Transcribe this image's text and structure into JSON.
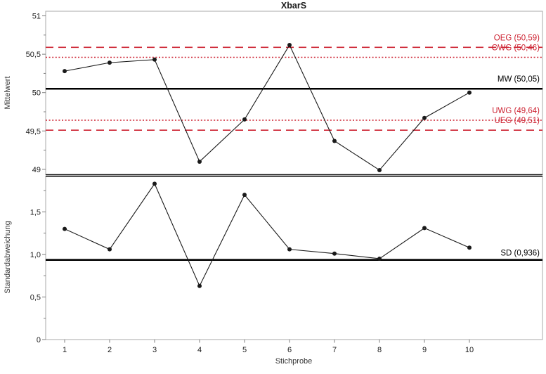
{
  "title": "XbarS",
  "colors": {
    "limit_red": "#cd2332",
    "center_black": "#000000",
    "series_black": "#1a1a1a",
    "frame_gray": "#a8a8a8",
    "tick_gray": "#7d7d7d",
    "text_dark": "#1a1a1a",
    "axis_title_gray": "#333333"
  },
  "chart_data": [
    {
      "type": "line",
      "name": "xbar-panel",
      "title": "XbarS",
      "ylabel": "Mittelwert",
      "x": [
        1,
        2,
        3,
        4,
        5,
        6,
        7,
        8,
        9,
        10
      ],
      "values": [
        50.28,
        50.39,
        50.43,
        49.1,
        49.65,
        50.62,
        49.37,
        48.99,
        49.67,
        50.0
      ],
      "ylim": [
        48.93,
        51.06
      ],
      "yticks": [
        49,
        49.5,
        50,
        50.5,
        51
      ],
      "ytick_labels": [
        "49",
        "49,5",
        "50",
        "50,5",
        "51"
      ],
      "grid": false,
      "legend_position": "none",
      "limit_lines": [
        {
          "name": "OEG",
          "label": "OEG (50,59)",
          "value": 50.59,
          "style": "dashed",
          "color": "#cd2332"
        },
        {
          "name": "OWG",
          "label": "OWG (50,46)",
          "value": 50.46,
          "style": "dotted",
          "color": "#cd2332"
        },
        {
          "name": "MW",
          "label": "MW (50,05)",
          "value": 50.05,
          "style": "solid",
          "color": "#000000"
        },
        {
          "name": "UWG",
          "label": "UWG (49,64)",
          "value": 49.64,
          "style": "dotted",
          "color": "#cd2332"
        },
        {
          "name": "UEG",
          "label": "UEG (49,51)",
          "value": 49.51,
          "style": "dashed",
          "color": "#cd2332"
        }
      ]
    },
    {
      "type": "line",
      "name": "s-panel",
      "ylabel": "Standardabweichung",
      "xlabel": "Stichprobe",
      "x": [
        1,
        2,
        3,
        4,
        5,
        6,
        7,
        8,
        9,
        10
      ],
      "xtick_labels": [
        "1",
        "2",
        "3",
        "4",
        "5",
        "6",
        "7",
        "8",
        "9",
        "10"
      ],
      "values": [
        1.3,
        1.06,
        1.83,
        0.63,
        1.7,
        1.06,
        1.01,
        0.95,
        1.31,
        1.08
      ],
      "ylim": [
        0,
        1.92
      ],
      "yticks": [
        0,
        0.5,
        1.0,
        1.5
      ],
      "ytick_labels": [
        "0",
        "0,5",
        "1,0",
        "1,5"
      ],
      "grid": false,
      "legend_position": "none",
      "limit_lines": [
        {
          "name": "SD",
          "label": "SD (0,936)",
          "value": 0.936,
          "style": "solid",
          "color": "#000000"
        }
      ]
    }
  ]
}
